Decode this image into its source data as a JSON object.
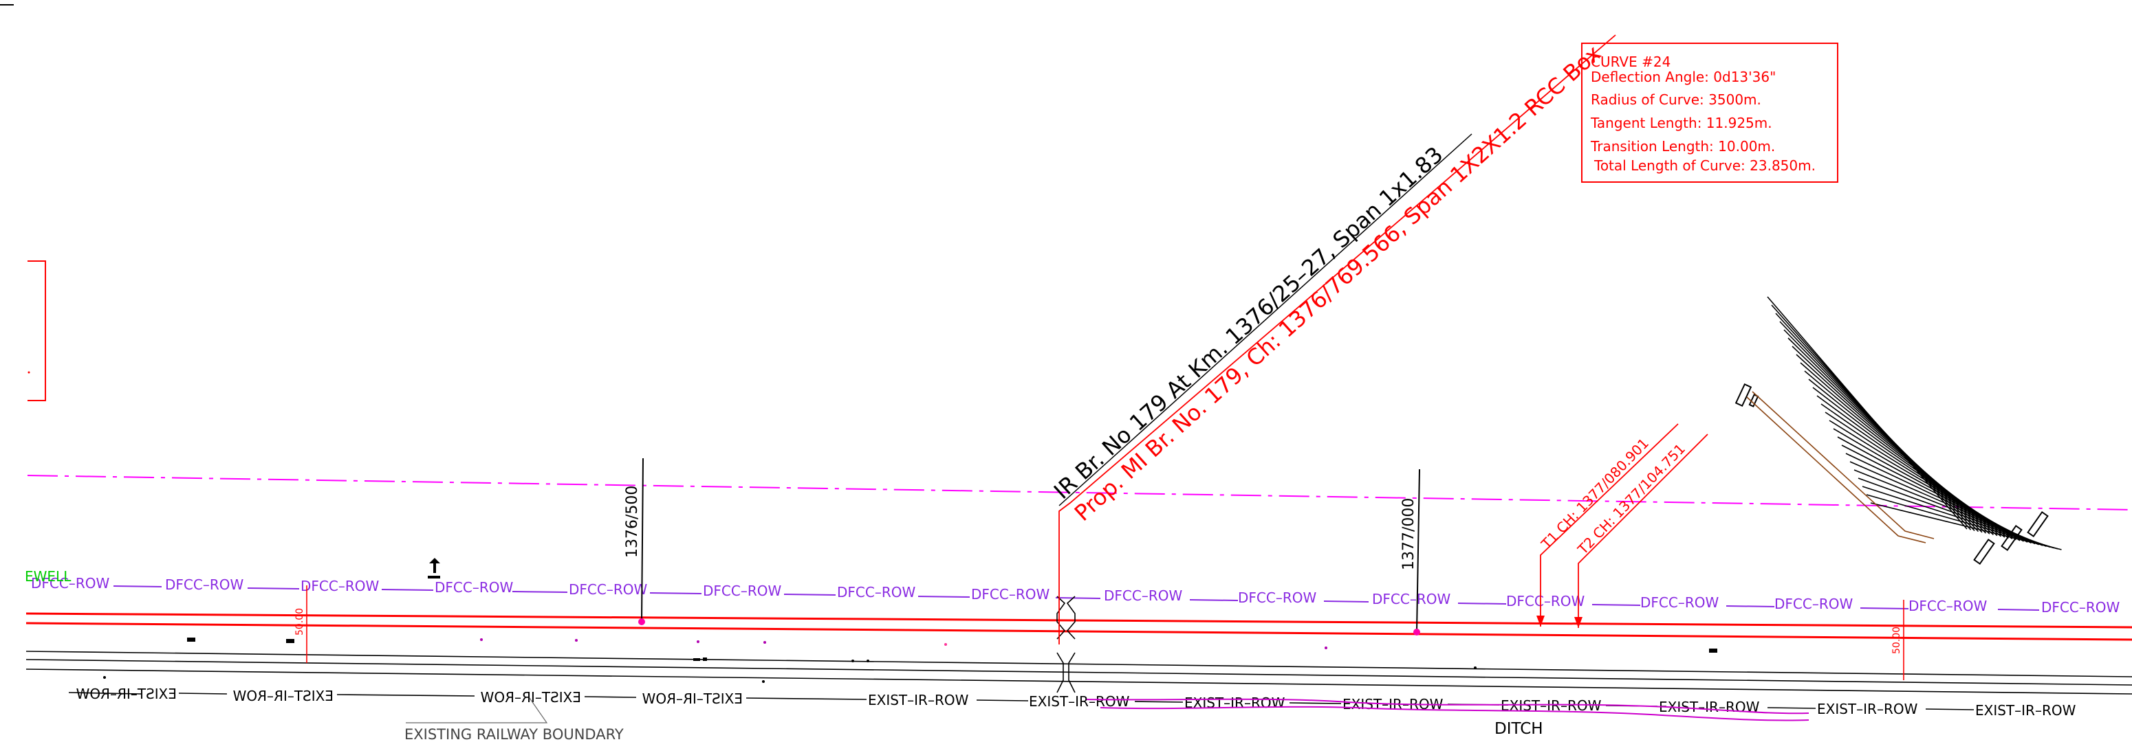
{
  "colors": {
    "background": "#ffffff",
    "row": "#8a2be2",
    "red": "#ff0000",
    "black": "#000000",
    "magenta": "#ff00ff",
    "green": "#00cc00",
    "brown": "#8b4513"
  },
  "labels": {
    "dfcc_row": "DFCC–ROW",
    "exist_ir_row": "EXIST–IR–ROW",
    "existing_boundary": "EXISTING RAILWAY BOUNDARY",
    "ditch": "DITCH",
    "ewell": "EWELL",
    "offset_mark": "50.00"
  },
  "chainage": {
    "ch_1376_500": "1376/500",
    "ch_1377_000": "1377/000"
  },
  "bridge": {
    "ir_label": "IR Br. No 179 At Km. 1376/25–27, Span 1x1.83",
    "prop_label": "Prop. MI Br. No. 179, Ch: 1376/769.566, Span 1X2X1.2 RCC Box"
  },
  "tangents": {
    "t1": "T1 CH: 1377/080.901",
    "t2": "T2 CH: 1377/104.751"
  },
  "curve_box": {
    "title": "CURVE #24",
    "lines": [
      "Deflection Angle: 0d13'36\"",
      "Radius of Curve: 3500m.",
      "Tangent Length: 11.925m.",
      "Transition Length: 10.00m.",
      "Total Length of Curve: 23.850m."
    ]
  }
}
